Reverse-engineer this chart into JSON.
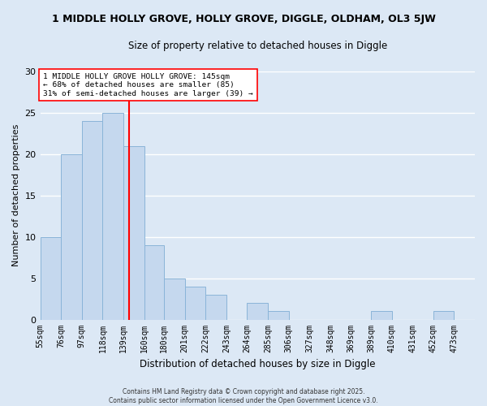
{
  "title": "1 MIDDLE HOLLY GROVE, HOLLY GROVE, DIGGLE, OLDHAM, OL3 5JW",
  "subtitle": "Size of property relative to detached houses in Diggle",
  "xlabel": "Distribution of detached houses by size in Diggle",
  "ylabel": "Number of detached properties",
  "background_color": "#dce8f5",
  "bar_color": "#c5d8ee",
  "bar_edge_color": "#8ab4d8",
  "bins": [
    55,
    76,
    97,
    118,
    139,
    160,
    180,
    201,
    222,
    243,
    264,
    285,
    306,
    327,
    348,
    369,
    389,
    410,
    431,
    452,
    473,
    494
  ],
  "bin_labels": [
    "55sqm",
    "76sqm",
    "97sqm",
    "118sqm",
    "139sqm",
    "160sqm",
    "180sqm",
    "201sqm",
    "222sqm",
    "243sqm",
    "264sqm",
    "285sqm",
    "306sqm",
    "327sqm",
    "348sqm",
    "369sqm",
    "389sqm",
    "410sqm",
    "431sqm",
    "452sqm",
    "473sqm"
  ],
  "counts": [
    10,
    20,
    24,
    25,
    21,
    9,
    5,
    4,
    3,
    0,
    2,
    1,
    0,
    0,
    0,
    0,
    1,
    0,
    0,
    1,
    0
  ],
  "redline_x": 145,
  "ylim": [
    0,
    30
  ],
  "yticks": [
    0,
    5,
    10,
    15,
    20,
    25,
    30
  ],
  "annotation_title": "1 MIDDLE HOLLY GROVE HOLLY GROVE: 145sqm",
  "annotation_line1": "← 68% of detached houses are smaller (85)",
  "annotation_line2": "31% of semi-detached houses are larger (39) →",
  "footnote1": "Contains HM Land Registry data © Crown copyright and database right 2025.",
  "footnote2": "Contains public sector information licensed under the Open Government Licence v3.0."
}
